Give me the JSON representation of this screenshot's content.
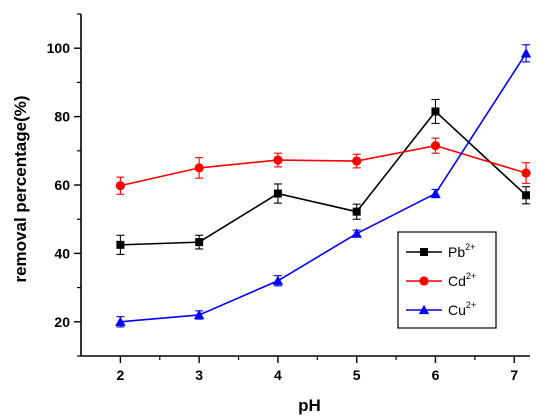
{
  "chart_data": {
    "type": "line",
    "title": "",
    "xlabel": "pH",
    "ylabel": "removal percentage(%)",
    "xlim": [
      1.5,
      7.2
    ],
    "ylim": [
      10,
      110
    ],
    "x_ticks": [
      "2",
      "3",
      "4",
      "5",
      "6",
      "7"
    ],
    "y_ticks": [
      "20",
      "40",
      "60",
      "80",
      "100"
    ],
    "grid": false,
    "legend_position": "lower-right",
    "series": [
      {
        "name": "Pb",
        "name_superscript": "2+",
        "color": "#000000",
        "marker": "square",
        "points": [
          {
            "x": 2,
            "y": 42.5,
            "err": 2.8
          },
          {
            "x": 3,
            "y": 43.3,
            "err": 2.0
          },
          {
            "x": 4,
            "y": 57.5,
            "err": 2.8
          },
          {
            "x": 5,
            "y": 52.2,
            "err": 2.2
          },
          {
            "x": 6,
            "y": 81.5,
            "err": 3.5
          },
          {
            "x": 7.15,
            "y": 57.0,
            "err": 2.5
          }
        ]
      },
      {
        "name": "Cd",
        "name_superscript": "2+",
        "color": "#ff0000",
        "marker": "circle",
        "points": [
          {
            "x": 2,
            "y": 59.8,
            "err": 2.5
          },
          {
            "x": 3,
            "y": 65.0,
            "err": 3.0
          },
          {
            "x": 4,
            "y": 67.3,
            "err": 2.0
          },
          {
            "x": 5,
            "y": 67.0,
            "err": 2.0
          },
          {
            "x": 6,
            "y": 71.5,
            "err": 2.2
          },
          {
            "x": 7.15,
            "y": 63.5,
            "err": 3.0
          }
        ]
      },
      {
        "name": "Cu",
        "name_superscript": "2+",
        "color": "#0000ff",
        "marker": "triangle",
        "points": [
          {
            "x": 2,
            "y": 20.0,
            "err": 1.5
          },
          {
            "x": 3,
            "y": 22.0,
            "err": 1.2
          },
          {
            "x": 4,
            "y": 32.0,
            "err": 1.5
          },
          {
            "x": 5,
            "y": 45.8,
            "err": 1.0
          },
          {
            "x": 6,
            "y": 57.5,
            "err": 1.2
          },
          {
            "x": 7.15,
            "y": 98.5,
            "err": 2.5
          }
        ]
      }
    ]
  }
}
